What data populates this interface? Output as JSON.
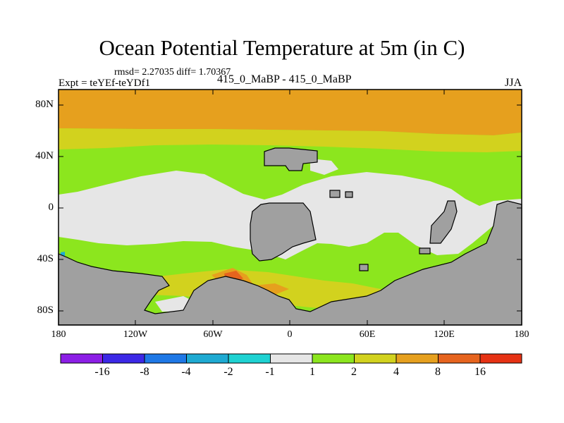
{
  "title": "Ocean Potential Temperature at 5m (in C)",
  "stats_line": "rmsd= 2.27035  diff= 1.70367",
  "experiment_line": "Expt = teYEf-teYDf1",
  "cases_line": "415_0_MaBP - 415_0_MaBP",
  "season": "JJA",
  "y_axis": {
    "labels": [
      "80N",
      "40N",
      "0",
      "40S",
      "80S"
    ]
  },
  "x_axis": {
    "labels": [
      "180",
      "120W",
      "60W",
      "0",
      "60E",
      "120E",
      "180"
    ]
  },
  "colorbar": {
    "labels": [
      "-16",
      "-8",
      "-4",
      "-2",
      "-1",
      "1",
      "2",
      "4",
      "8",
      "16"
    ],
    "colors": [
      "#8c1ee6",
      "#3c28e6",
      "#1e78e6",
      "#1eaad2",
      "#1ed2d2",
      "#e6e6e6",
      "#8ce61e",
      "#d2d21e",
      "#e6a01e",
      "#e6641e",
      "#e63214"
    ]
  },
  "map_colors": {
    "land": "#a0a0a0",
    "band_1_2": "#8ce61e",
    "band_2_4": "#d2d21e",
    "band_4_8": "#e6a01e",
    "band_8_16": "#e6641e",
    "band_m1_1": "#e6e6e6",
    "band_m4_m2": "#1eaad2"
  }
}
